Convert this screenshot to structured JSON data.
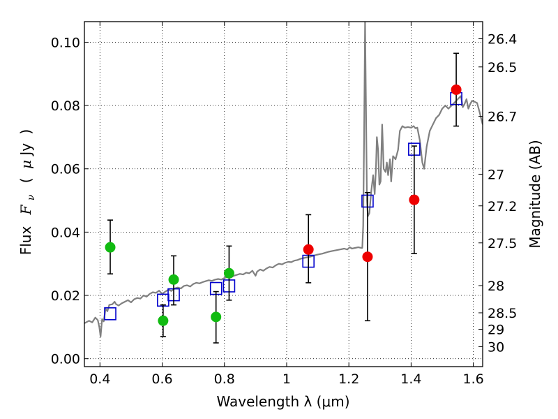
{
  "chart_data": {
    "type": "scatter",
    "xlabel": "Wavelength  λ (μm)",
    "ylabel": "Flux  Fν  ( μJy )",
    "ylabel_parts": {
      "flux": "Flux",
      "F": "F",
      "nu": "ν",
      "open": "(",
      "mu": "μ",
      "jy": "Jy",
      "close": ")"
    },
    "y2label": "Magnitude (AB)",
    "xlim": [
      0.35,
      1.63
    ],
    "ylim": [
      -0.0025,
      0.1065
    ],
    "grid": true,
    "x_ticks": [
      {
        "value": 0.4,
        "label": "0.4"
      },
      {
        "value": 0.6,
        "label": "0.6"
      },
      {
        "value": 0.8,
        "label": "0.8"
      },
      {
        "value": 1.0,
        "label": "1"
      },
      {
        "value": 1.2,
        "label": "1.2"
      },
      {
        "value": 1.4,
        "label": "1.4"
      },
      {
        "value": 1.6,
        "label": "1.6"
      }
    ],
    "y_ticks": [
      {
        "value": 0.0,
        "label": "0.00"
      },
      {
        "value": 0.02,
        "label": "0.02"
      },
      {
        "value": 0.04,
        "label": "0.04"
      },
      {
        "value": 0.06,
        "label": "0.06"
      },
      {
        "value": 0.08,
        "label": "0.08"
      },
      {
        "value": 0.1,
        "label": "0.10"
      }
    ],
    "right_ticks": [
      {
        "flux": 0.1011,
        "label": "26.4"
      },
      {
        "flux": 0.0922,
        "label": "26.5"
      },
      {
        "flux": 0.0766,
        "label": "26.7"
      },
      {
        "flux": 0.0583,
        "label": "27"
      },
      {
        "flux": 0.0483,
        "label": "27.2"
      },
      {
        "flux": 0.0366,
        "label": "27.5"
      },
      {
        "flux": 0.0231,
        "label": "28"
      },
      {
        "flux": 0.0145,
        "label": "28.5"
      },
      {
        "flux": 0.0093,
        "label": "29"
      },
      {
        "flux": 0.0038,
        "label": "30"
      }
    ],
    "series": [
      {
        "kind": "spectrum",
        "color": "#808080",
        "points": [
          [
            0.35,
            0.0112
          ],
          [
            0.365,
            0.012
          ],
          [
            0.375,
            0.0115
          ],
          [
            0.385,
            0.013
          ],
          [
            0.393,
            0.0122
          ],
          [
            0.398,
            0.01
          ],
          [
            0.402,
            0.007
          ],
          [
            0.407,
            0.0125
          ],
          [
            0.412,
            0.0118
          ],
          [
            0.418,
            0.0158
          ],
          [
            0.424,
            0.015
          ],
          [
            0.43,
            0.017
          ],
          [
            0.44,
            0.0172
          ],
          [
            0.447,
            0.018
          ],
          [
            0.452,
            0.0172
          ],
          [
            0.46,
            0.0168
          ],
          [
            0.47,
            0.0175
          ],
          [
            0.48,
            0.018
          ],
          [
            0.49,
            0.0185
          ],
          [
            0.5,
            0.0178
          ],
          [
            0.51,
            0.0188
          ],
          [
            0.52,
            0.0192
          ],
          [
            0.53,
            0.019
          ],
          [
            0.54,
            0.02
          ],
          [
            0.55,
            0.0196
          ],
          [
            0.56,
            0.0205
          ],
          [
            0.57,
            0.021
          ],
          [
            0.58,
            0.0208
          ],
          [
            0.59,
            0.0215
          ],
          [
            0.6,
            0.0205
          ],
          [
            0.61,
            0.0212
          ],
          [
            0.62,
            0.0218
          ],
          [
            0.63,
            0.0214
          ],
          [
            0.64,
            0.0222
          ],
          [
            0.65,
            0.0225
          ],
          [
            0.66,
            0.0222
          ],
          [
            0.67,
            0.023
          ],
          [
            0.68,
            0.0232
          ],
          [
            0.69,
            0.0228
          ],
          [
            0.7,
            0.0236
          ],
          [
            0.71,
            0.024
          ],
          [
            0.72,
            0.0238
          ],
          [
            0.73,
            0.0242
          ],
          [
            0.74,
            0.0245
          ],
          [
            0.75,
            0.0248
          ],
          [
            0.76,
            0.0246
          ],
          [
            0.77,
            0.025
          ],
          [
            0.78,
            0.0252
          ],
          [
            0.79,
            0.025
          ],
          [
            0.8,
            0.0255
          ],
          [
            0.81,
            0.0258
          ],
          [
            0.82,
            0.0256
          ],
          [
            0.83,
            0.0262
          ],
          [
            0.84,
            0.0265
          ],
          [
            0.85,
            0.0268
          ],
          [
            0.86,
            0.0266
          ],
          [
            0.87,
            0.0272
          ],
          [
            0.88,
            0.027
          ],
          [
            0.89,
            0.0278
          ],
          [
            0.9,
            0.0262
          ],
          [
            0.905,
            0.0275
          ],
          [
            0.915,
            0.0282
          ],
          [
            0.925,
            0.0278
          ],
          [
            0.935,
            0.0285
          ],
          [
            0.945,
            0.029
          ],
          [
            0.955,
            0.0288
          ],
          [
            0.965,
            0.0295
          ],
          [
            0.975,
            0.03
          ],
          [
            0.985,
            0.0298
          ],
          [
            0.995,
            0.0303
          ],
          [
            1.005,
            0.0306
          ],
          [
            1.015,
            0.0305
          ],
          [
            1.025,
            0.031
          ],
          [
            1.035,
            0.0312
          ],
          [
            1.045,
            0.0316
          ],
          [
            1.055,
            0.0318
          ],
          [
            1.065,
            0.032
          ],
          [
            1.075,
            0.0322
          ],
          [
            1.085,
            0.0325
          ],
          [
            1.095,
            0.0328
          ],
          [
            1.105,
            0.033
          ],
          [
            1.115,
            0.0332
          ],
          [
            1.125,
            0.0335
          ],
          [
            1.135,
            0.0338
          ],
          [
            1.145,
            0.034
          ],
          [
            1.155,
            0.0342
          ],
          [
            1.165,
            0.0344
          ],
          [
            1.175,
            0.0346
          ],
          [
            1.185,
            0.0348
          ],
          [
            1.195,
            0.0345
          ],
          [
            1.203,
            0.0352
          ],
          [
            1.21,
            0.0348
          ],
          [
            1.22,
            0.035
          ],
          [
            1.23,
            0.0352
          ],
          [
            1.24,
            0.035
          ],
          [
            1.243,
            0.035
          ],
          [
            1.246,
            0.042
          ],
          [
            1.249,
            0.07
          ],
          [
            1.252,
            0.1065
          ],
          [
            1.255,
            0.08
          ],
          [
            1.258,
            0.05
          ],
          [
            1.261,
            0.045
          ],
          [
            1.266,
            0.046
          ],
          [
            1.272,
            0.053
          ],
          [
            1.278,
            0.058
          ],
          [
            1.283,
            0.052
          ],
          [
            1.287,
            0.06
          ],
          [
            1.29,
            0.07
          ],
          [
            1.294,
            0.066
          ],
          [
            1.298,
            0.055
          ],
          [
            1.302,
            0.056
          ],
          [
            1.307,
            0.074
          ],
          [
            1.312,
            0.06
          ],
          [
            1.318,
            0.059
          ],
          [
            1.322,
            0.062
          ],
          [
            1.326,
            0.058
          ],
          [
            1.332,
            0.063
          ],
          [
            1.336,
            0.056
          ],
          [
            1.342,
            0.064
          ],
          [
            1.35,
            0.063
          ],
          [
            1.358,
            0.066
          ],
          [
            1.364,
            0.072
          ],
          [
            1.372,
            0.0735
          ],
          [
            1.38,
            0.073
          ],
          [
            1.39,
            0.0732
          ],
          [
            1.4,
            0.073
          ],
          [
            1.408,
            0.0735
          ],
          [
            1.414,
            0.0728
          ],
          [
            1.42,
            0.073
          ],
          [
            1.428,
            0.069
          ],
          [
            1.436,
            0.062
          ],
          [
            1.442,
            0.06
          ],
          [
            1.45,
            0.067
          ],
          [
            1.46,
            0.072
          ],
          [
            1.47,
            0.074
          ],
          [
            1.48,
            0.076
          ],
          [
            1.49,
            0.077
          ],
          [
            1.5,
            0.079
          ],
          [
            1.51,
            0.08
          ],
          [
            1.52,
            0.079
          ],
          [
            1.53,
            0.08
          ],
          [
            1.54,
            0.081
          ],
          [
            1.55,
            0.082
          ],
          [
            1.56,
            0.083
          ],
          [
            1.566,
            0.0795
          ],
          [
            1.572,
            0.0805
          ],
          [
            1.578,
            0.082
          ],
          [
            1.584,
            0.079
          ],
          [
            1.59,
            0.0805
          ],
          [
            1.596,
            0.0815
          ],
          [
            1.604,
            0.0812
          ],
          [
            1.612,
            0.0808
          ],
          [
            1.62,
            0.078
          ],
          [
            1.63,
            0.074
          ]
        ]
      },
      {
        "kind": "model-boxes",
        "color": "#0000cc",
        "points": [
          [
            0.433,
            0.0142
          ],
          [
            0.603,
            0.0185
          ],
          [
            0.637,
            0.0202
          ],
          [
            0.773,
            0.0222
          ],
          [
            0.815,
            0.023
          ],
          [
            1.07,
            0.0308
          ],
          [
            1.26,
            0.0498
          ],
          [
            1.41,
            0.0662
          ],
          [
            1.545,
            0.0822
          ]
        ]
      },
      {
        "kind": "detections-green",
        "color": "#11bb11",
        "points": [
          {
            "x": 0.433,
            "y": 0.0352,
            "lo": 0.0268,
            "hi": 0.0438
          },
          {
            "x": 0.603,
            "y": 0.012,
            "lo": 0.007,
            "hi": 0.017
          },
          {
            "x": 0.637,
            "y": 0.025,
            "lo": 0.017,
            "hi": 0.0325
          },
          {
            "x": 0.773,
            "y": 0.0132,
            "lo": 0.005,
            "hi": 0.0212
          },
          {
            "x": 0.815,
            "y": 0.027,
            "lo": 0.0185,
            "hi": 0.0356
          }
        ]
      },
      {
        "kind": "detections-red",
        "color": "#ee0000",
        "points": [
          {
            "x": 1.07,
            "y": 0.0345,
            "lo": 0.024,
            "hi": 0.0455
          },
          {
            "x": 1.26,
            "y": 0.0322,
            "lo": 0.012,
            "hi": 0.0525
          },
          {
            "x": 1.41,
            "y": 0.0502,
            "lo": 0.0332,
            "hi": 0.0672
          },
          {
            "x": 1.545,
            "y": 0.085,
            "lo": 0.0735,
            "hi": 0.0965
          }
        ]
      }
    ]
  }
}
